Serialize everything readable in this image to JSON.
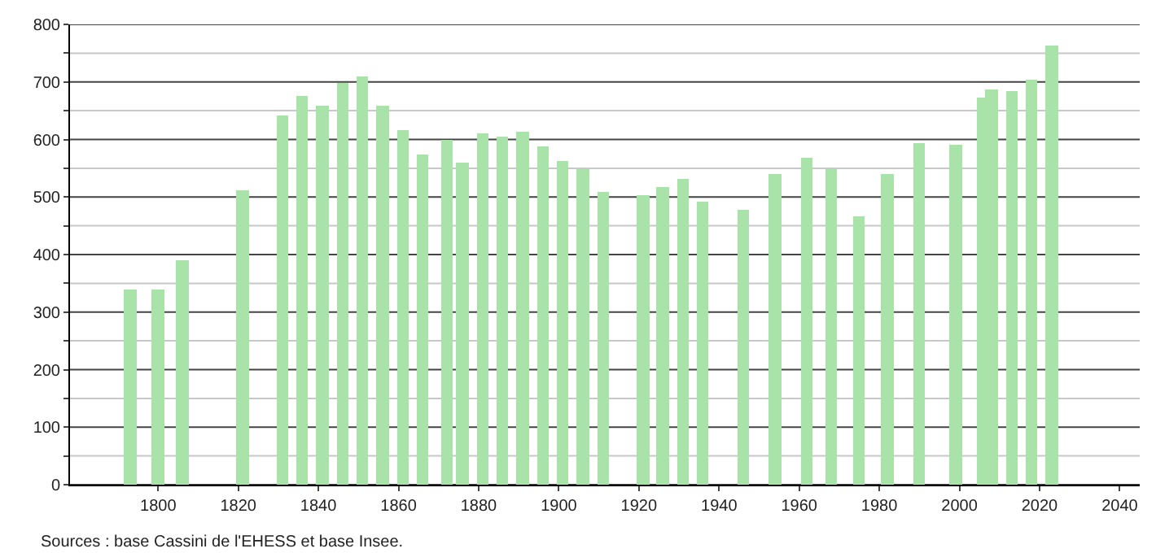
{
  "chart_data": {
    "type": "bar",
    "color": "#aae3aa",
    "x": [
      1793,
      1800,
      1806,
      1821,
      1831,
      1836,
      1841,
      1846,
      1851,
      1856,
      1861,
      1866,
      1872,
      1876,
      1881,
      1886,
      1891,
      1896,
      1901,
      1906,
      1911,
      1921,
      1926,
      1931,
      1936,
      1946,
      1954,
      1962,
      1968,
      1975,
      1982,
      1990,
      1999,
      2006,
      2008,
      2013,
      2018,
      2023
    ],
    "values": [
      340,
      340,
      390,
      513,
      641,
      676,
      660,
      698,
      709,
      660,
      617,
      575,
      600,
      560,
      610,
      605,
      613,
      587,
      563,
      548,
      509,
      503,
      517,
      531,
      491,
      477,
      540,
      568,
      548,
      467,
      540,
      593,
      590,
      674,
      687,
      684,
      704,
      764
    ],
    "xlim": [
      1778,
      2045
    ],
    "xticks": [
      1800,
      1820,
      1840,
      1860,
      1880,
      1900,
      1920,
      1940,
      1960,
      1980,
      2000,
      2020,
      2040
    ],
    "ylim": [
      0,
      800
    ],
    "yticks": [
      0,
      {
        "value": 50,
        "label": null
      },
      100,
      {
        "value": 150,
        "label": null
      },
      200,
      {
        "value": 250,
        "label": null
      },
      300,
      {
        "value": 350,
        "label": null
      },
      400,
      {
        "value": 450,
        "label": null
      },
      500,
      {
        "value": 550,
        "label": null
      },
      600,
      {
        "value": 650,
        "label": null
      },
      700,
      {
        "value": 750,
        "label": null
      },
      800
    ],
    "grid": "y",
    "annotations": [
      "Sources : base Cassini de l'EHESS et base Insee."
    ]
  }
}
